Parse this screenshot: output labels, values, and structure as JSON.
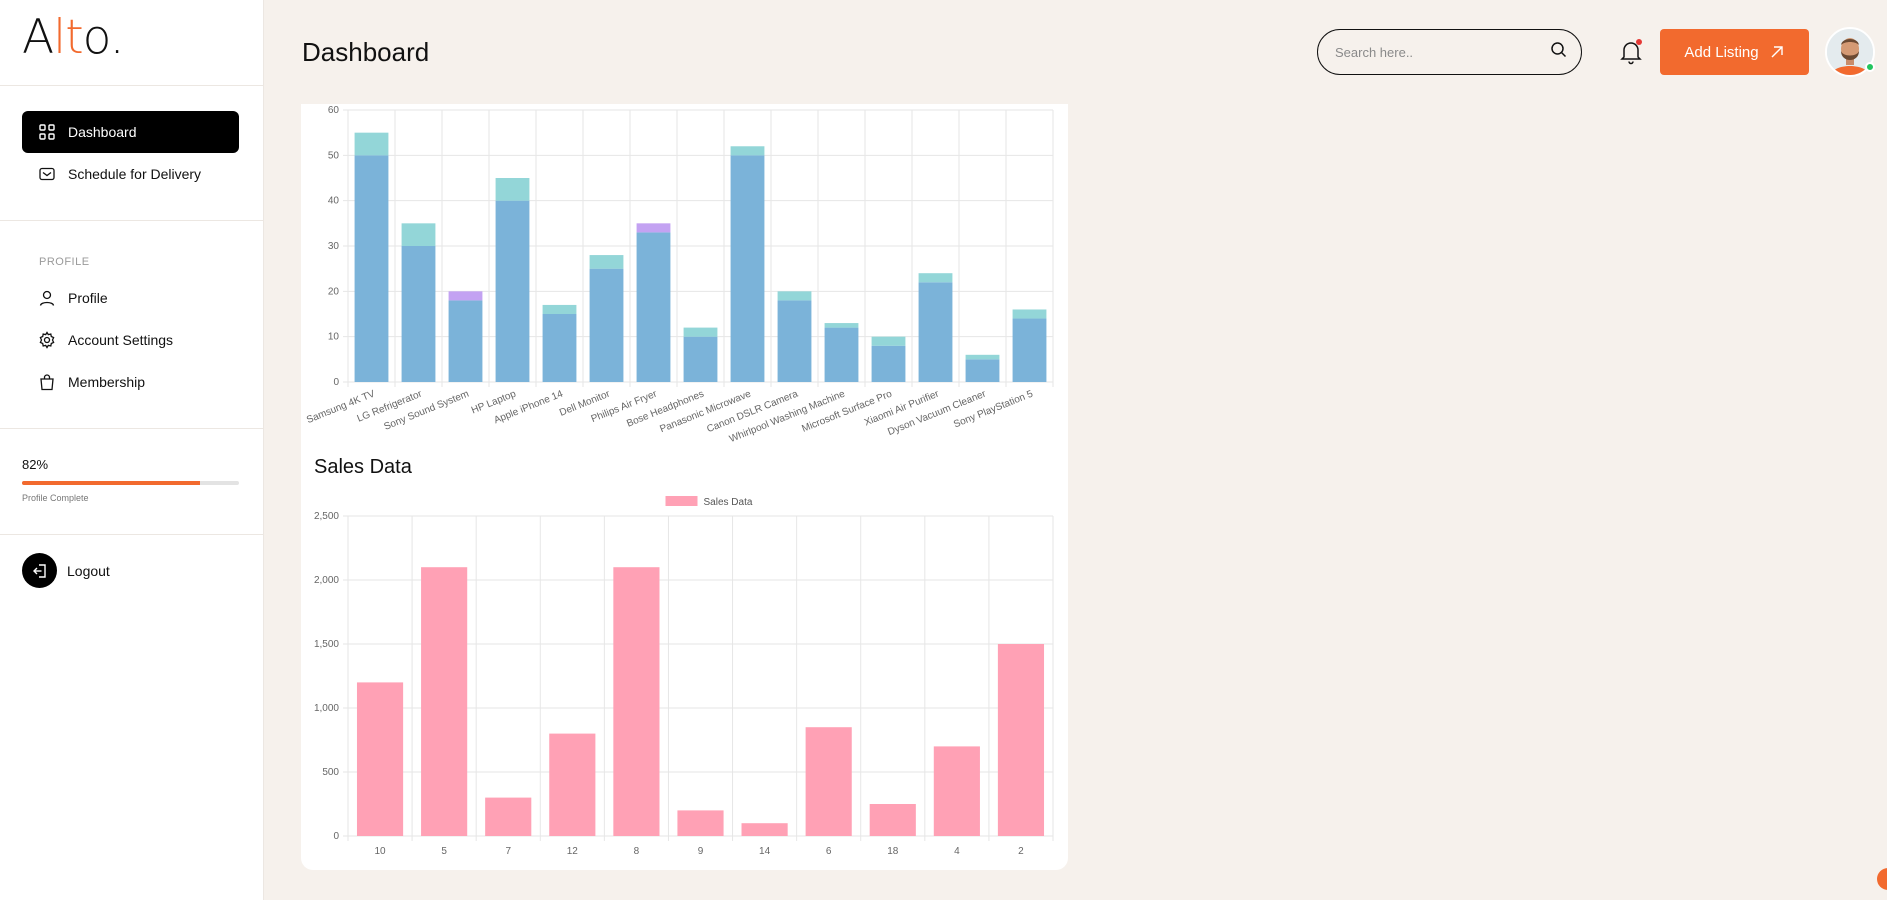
{
  "brand": {
    "logo_prefix": "A",
    "logo_accent": "lt",
    "logo_suffix": "o."
  },
  "sidebar": {
    "nav": [
      {
        "label": "Dashboard",
        "icon": "grid-icon",
        "active": true
      },
      {
        "label": "Schedule for Delivery",
        "icon": "mail-icon",
        "active": false
      }
    ],
    "section_label": "PROFILE",
    "profile_items": [
      {
        "label": "Profile",
        "icon": "user-icon"
      },
      {
        "label": "Account Settings",
        "icon": "gear-icon"
      },
      {
        "label": "Membership",
        "icon": "bag-icon"
      }
    ],
    "progress": {
      "percent_text": "82%",
      "value": 0.82,
      "label": "Profile Complete"
    },
    "logout_label": "Logout"
  },
  "header": {
    "title": "Dashboard",
    "search_placeholder": "Search here..",
    "add_listing_label": "Add Listing",
    "notification_dot": true
  },
  "colors": {
    "accent": "#f26a2e",
    "bar_blue": "#7bb3d9",
    "bar_teal": "#93d6d8",
    "bar_purple": "#c3a2f2",
    "bar_pink": "#ffa1b5"
  },
  "sales_title": "Sales Data",
  "chart_data": [
    {
      "type": "bar",
      "stacked": true,
      "categories": [
        "Samsung 4K TV",
        "LG Refrigerator",
        "Sony Sound System",
        "HP Laptop",
        "Apple iPhone 14",
        "Dell Monitor",
        "Philips Air Fryer",
        "Bose Headphones",
        "Panasonic Microwave",
        "Canon DSLR Camera",
        "Whirlpool Washing Machine",
        "Microsoft Surface Pro",
        "Xiaomi Air Purifier",
        "Dyson Vacuum Cleaner",
        "Sony PlayStation 5"
      ],
      "series": [
        {
          "color": "#7bb3d9",
          "values": [
            50,
            30,
            18,
            40,
            15,
            25,
            33,
            10,
            50,
            18,
            12,
            8,
            22,
            5,
            14
          ]
        },
        {
          "color": "#93d6d8",
          "values": [
            5,
            5,
            0,
            5,
            2,
            3,
            0,
            2,
            2,
            2,
            1,
            2,
            2,
            1,
            2
          ]
        },
        {
          "color": "#c3a2f2",
          "values": [
            0,
            0,
            2,
            0,
            0,
            0,
            2,
            0,
            0,
            0,
            0,
            0,
            0,
            0,
            0
          ]
        }
      ],
      "ylim": [
        0,
        60
      ],
      "yticks": [
        "0",
        "10",
        "20",
        "30",
        "40",
        "50",
        "60"
      ],
      "grid": true
    },
    {
      "type": "bar",
      "legend": "Sales Data",
      "legend_position": "top",
      "categories": [
        "10",
        "5",
        "7",
        "12",
        "8",
        "9",
        "14",
        "6",
        "18",
        "4",
        "2"
      ],
      "series": [
        {
          "name": "Sales Data",
          "color": "#ffa1b5",
          "values": [
            1200,
            2100,
            300,
            800,
            2100,
            200,
            100,
            850,
            250,
            700,
            1500
          ]
        }
      ],
      "ylim": [
        0,
        2500
      ],
      "yticks": [
        "0",
        "500",
        "1,000",
        "1,500",
        "2,000",
        "2,500"
      ],
      "grid": true
    }
  ]
}
